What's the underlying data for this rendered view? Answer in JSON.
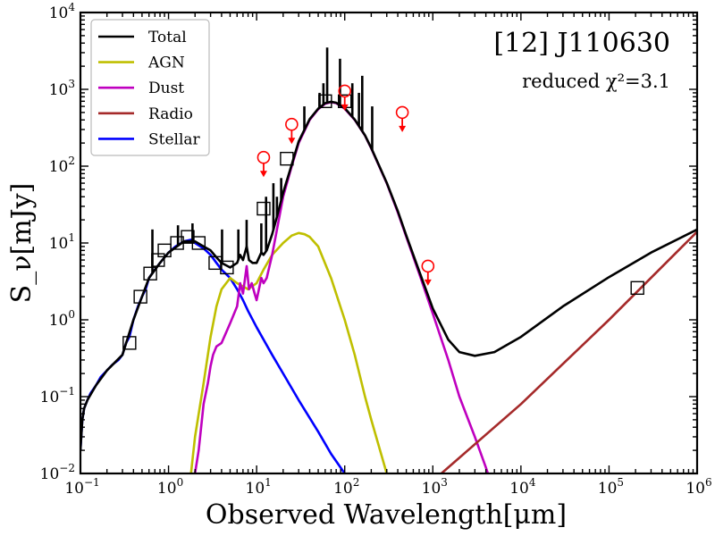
{
  "chart_data": {
    "type": "line",
    "title": "[12] J110630",
    "annotation": "reduced χ²=3.1",
    "xlabel": "Observed Wavelength[μm]",
    "ylabel": "S_ν[mJy]",
    "xscale": "log",
    "yscale": "log",
    "xlim": [
      0.1,
      1000000
    ],
    "ylim": [
      0.01,
      10000
    ],
    "x_ticks": [
      {
        "value": 0.1,
        "base": "10",
        "exp": "−1"
      },
      {
        "value": 1,
        "base": "10",
        "exp": "0"
      },
      {
        "value": 10,
        "base": "10",
        "exp": "1"
      },
      {
        "value": 100,
        "base": "10",
        "exp": "2"
      },
      {
        "value": 1000,
        "base": "10",
        "exp": "3"
      },
      {
        "value": 10000,
        "base": "10",
        "exp": "4"
      },
      {
        "value": 100000,
        "base": "10",
        "exp": "5"
      },
      {
        "value": 1000000,
        "base": "10",
        "exp": "6"
      }
    ],
    "y_ticks": [
      {
        "value": 0.01,
        "base": "10",
        "exp": "−2"
      },
      {
        "value": 0.1,
        "base": "10",
        "exp": "−1"
      },
      {
        "value": 1,
        "base": "10",
        "exp": "0"
      },
      {
        "value": 10,
        "base": "10",
        "exp": "1"
      },
      {
        "value": 100,
        "base": "10",
        "exp": "2"
      },
      {
        "value": 1000,
        "base": "10",
        "exp": "3"
      },
      {
        "value": 10000,
        "base": "10",
        "exp": "4"
      }
    ],
    "legend": {
      "position": "top-left",
      "entries": [
        {
          "label": "Total",
          "color": "#000000"
        },
        {
          "label": "AGN",
          "color": "#bfbf00"
        },
        {
          "label": "Dust",
          "color": "#bf00bf"
        },
        {
          "label": "Radio",
          "color": "#a52a2a"
        },
        {
          "label": "Stellar",
          "color": "#0000ff"
        }
      ]
    },
    "series": [
      {
        "name": "Stellar",
        "color": "#0000ff",
        "points": [
          [
            0.1,
            0.02
          ],
          [
            0.105,
            0.05
          ],
          [
            0.11,
            0.07
          ],
          [
            0.12,
            0.09
          ],
          [
            0.13,
            0.11
          ],
          [
            0.15,
            0.14
          ],
          [
            0.17,
            0.18
          ],
          [
            0.2,
            0.22
          ],
          [
            0.23,
            0.26
          ],
          [
            0.27,
            0.3
          ],
          [
            0.3,
            0.35
          ],
          [
            0.33,
            0.5
          ],
          [
            0.36,
            0.6
          ],
          [
            0.4,
            1.0
          ],
          [
            0.45,
            1.5
          ],
          [
            0.5,
            2.0
          ],
          [
            0.55,
            2.5
          ],
          [
            0.6,
            3.5
          ],
          [
            0.7,
            4.5
          ],
          [
            0.8,
            5.5
          ],
          [
            0.9,
            6.5
          ],
          [
            1.0,
            7.5
          ],
          [
            1.2,
            9.0
          ],
          [
            1.5,
            10.5
          ],
          [
            1.8,
            11.0
          ],
          [
            2.0,
            10.0
          ],
          [
            2.5,
            8.5
          ],
          [
            3.0,
            7.0
          ],
          [
            3.5,
            5.5
          ],
          [
            4.0,
            4.5
          ],
          [
            5.0,
            3.5
          ],
          [
            6.0,
            2.5
          ],
          [
            7.0,
            1.8
          ],
          [
            8.0,
            1.3
          ],
          [
            10,
            0.8
          ],
          [
            15,
            0.35
          ],
          [
            20,
            0.2
          ],
          [
            30,
            0.09
          ],
          [
            50,
            0.035
          ],
          [
            70,
            0.018
          ],
          [
            100,
            0.01
          ]
        ]
      },
      {
        "name": "AGN",
        "color": "#bfbf00",
        "points": [
          [
            1.8,
            0.01
          ],
          [
            2.0,
            0.03
          ],
          [
            2.5,
            0.15
          ],
          [
            3.0,
            0.6
          ],
          [
            3.5,
            1.5
          ],
          [
            4.0,
            2.5
          ],
          [
            5.0,
            3.5
          ],
          [
            6.0,
            3.0
          ],
          [
            8.0,
            2.5
          ],
          [
            10.0,
            3.0
          ],
          [
            12,
            4.5
          ],
          [
            15,
            7.0
          ],
          [
            20,
            10.0
          ],
          [
            25,
            12.5
          ],
          [
            30,
            13.5
          ],
          [
            35,
            13.0
          ],
          [
            40,
            12.0
          ],
          [
            50,
            9.0
          ],
          [
            70,
            3.5
          ],
          [
            100,
            1.0
          ],
          [
            130,
            0.35
          ],
          [
            170,
            0.1
          ],
          [
            200,
            0.05
          ],
          [
            300,
            0.01
          ]
        ]
      },
      {
        "name": "Dust",
        "color": "#bf00bf",
        "points": [
          [
            2.0,
            0.01
          ],
          [
            2.2,
            0.02
          ],
          [
            2.5,
            0.08
          ],
          [
            2.8,
            0.15
          ],
          [
            3.0,
            0.25
          ],
          [
            3.2,
            0.35
          ],
          [
            3.5,
            0.45
          ],
          [
            4.0,
            0.5
          ],
          [
            5.0,
            0.9
          ],
          [
            6.0,
            1.5
          ],
          [
            6.5,
            3.0
          ],
          [
            7.0,
            2.2
          ],
          [
            7.7,
            5.0
          ],
          [
            8.2,
            2.5
          ],
          [
            8.8,
            3.0
          ],
          [
            9.5,
            2.2
          ],
          [
            10,
            1.8
          ],
          [
            11.3,
            3.5
          ],
          [
            12,
            3.0
          ],
          [
            13,
            3.5
          ],
          [
            15,
            7.0
          ],
          [
            17,
            15
          ],
          [
            20,
            40
          ],
          [
            25,
            100
          ],
          [
            30,
            200
          ],
          [
            40,
            400
          ],
          [
            50,
            550
          ],
          [
            60,
            650
          ],
          [
            70,
            680
          ],
          [
            80,
            660
          ],
          [
            100,
            560
          ],
          [
            130,
            400
          ],
          [
            170,
            250
          ],
          [
            200,
            170
          ],
          [
            300,
            60
          ],
          [
            400,
            25
          ],
          [
            500,
            12
          ],
          [
            700,
            4
          ],
          [
            1000,
            1.2
          ],
          [
            1500,
            0.3
          ],
          [
            2000,
            0.1
          ],
          [
            3000,
            0.03
          ],
          [
            4000,
            0.012
          ],
          [
            4500,
            0.008
          ]
        ]
      },
      {
        "name": "Radio",
        "color": "#a52a2a",
        "points": [
          [
            1000,
            0.008
          ],
          [
            10000,
            0.08
          ],
          [
            100000,
            1.0
          ],
          [
            1000000,
            14
          ]
        ]
      },
      {
        "name": "Total",
        "color": "#000000",
        "points": [
          [
            0.1,
            0.02
          ],
          [
            0.105,
            0.05
          ],
          [
            0.11,
            0.07
          ],
          [
            0.12,
            0.09
          ],
          [
            0.15,
            0.14
          ],
          [
            0.2,
            0.22
          ],
          [
            0.3,
            0.35
          ],
          [
            0.4,
            1.0
          ],
          [
            0.5,
            2.0
          ],
          [
            0.6,
            3.5
          ],
          [
            0.8,
            5.5
          ],
          [
            1.0,
            7.5
          ],
          [
            1.5,
            10.5
          ],
          [
            2.0,
            10.5
          ],
          [
            2.5,
            9.0
          ],
          [
            3.0,
            8.0
          ],
          [
            3.5,
            6.5
          ],
          [
            4.0,
            5.5
          ],
          [
            5.0,
            4.8
          ],
          [
            6.0,
            5.5
          ],
          [
            6.5,
            7.0
          ],
          [
            7.0,
            6.0
          ],
          [
            7.7,
            9.0
          ],
          [
            8.2,
            6.0
          ],
          [
            9.0,
            5.5
          ],
          [
            10,
            5.5
          ],
          [
            11.3,
            7.5
          ],
          [
            12,
            7.0
          ],
          [
            13,
            8.0
          ],
          [
            15,
            13
          ],
          [
            17,
            22
          ],
          [
            20,
            45
          ],
          [
            25,
            105
          ],
          [
            30,
            210
          ],
          [
            40,
            410
          ],
          [
            50,
            560
          ],
          [
            60,
            660
          ],
          [
            70,
            690
          ],
          [
            80,
            670
          ],
          [
            100,
            570
          ],
          [
            130,
            405
          ],
          [
            170,
            252
          ],
          [
            200,
            172
          ],
          [
            300,
            61
          ],
          [
            400,
            26
          ],
          [
            500,
            12.5
          ],
          [
            700,
            4.3
          ],
          [
            1000,
            1.4
          ],
          [
            1500,
            0.55
          ],
          [
            2000,
            0.38
          ],
          [
            3000,
            0.34
          ],
          [
            5000,
            0.38
          ],
          [
            10000,
            0.6
          ],
          [
            30000,
            1.5
          ],
          [
            100000,
            3.6
          ],
          [
            300000,
            7.5
          ],
          [
            1000000,
            15
          ]
        ]
      }
    ],
    "total_spikes": [
      {
        "x": 0.656,
        "y": 15
      },
      {
        "x": 1.28,
        "y": 17
      },
      {
        "x": 1.87,
        "y": 18
      },
      {
        "x": 4.05,
        "y": 15
      },
      {
        "x": 6.2,
        "y": 15
      },
      {
        "x": 7.7,
        "y": 20
      },
      {
        "x": 11.3,
        "y": 18
      },
      {
        "x": 12.8,
        "y": 40
      },
      {
        "x": 15.5,
        "y": 60
      },
      {
        "x": 17.0,
        "y": 40
      },
      {
        "x": 19.0,
        "y": 70
      },
      {
        "x": 34.8,
        "y": 600
      },
      {
        "x": 51.8,
        "y": 900
      },
      {
        "x": 57.3,
        "y": 1200
      },
      {
        "x": 63.2,
        "y": 3500
      },
      {
        "x": 88.4,
        "y": 2500
      },
      {
        "x": 122,
        "y": 1200
      },
      {
        "x": 145,
        "y": 900
      },
      {
        "x": 158,
        "y": 1500
      },
      {
        "x": 205,
        "y": 600
      }
    ],
    "observed_points": [
      {
        "x": 0.36,
        "y": 0.5
      },
      {
        "x": 0.48,
        "y": 2.0
      },
      {
        "x": 0.62,
        "y": 4.0
      },
      {
        "x": 0.76,
        "y": 6.0
      },
      {
        "x": 0.9,
        "y": 8.0
      },
      {
        "x": 1.25,
        "y": 10.0
      },
      {
        "x": 1.65,
        "y": 12.0
      },
      {
        "x": 2.2,
        "y": 10.0
      },
      {
        "x": 3.4,
        "y": 5.5
      },
      {
        "x": 4.6,
        "y": 4.8
      },
      {
        "x": 12,
        "y": 28
      },
      {
        "x": 22,
        "y": 125
      },
      {
        "x": 60,
        "y": 700
      },
      {
        "x": 100,
        "y": 700
      },
      {
        "x": 210000,
        "y": 2.6
      }
    ],
    "upper_limits": [
      {
        "x": 12,
        "y": 130
      },
      {
        "x": 25,
        "y": 350
      },
      {
        "x": 100,
        "y": 950
      },
      {
        "x": 450,
        "y": 500
      },
      {
        "x": 880,
        "y": 5
      }
    ]
  }
}
